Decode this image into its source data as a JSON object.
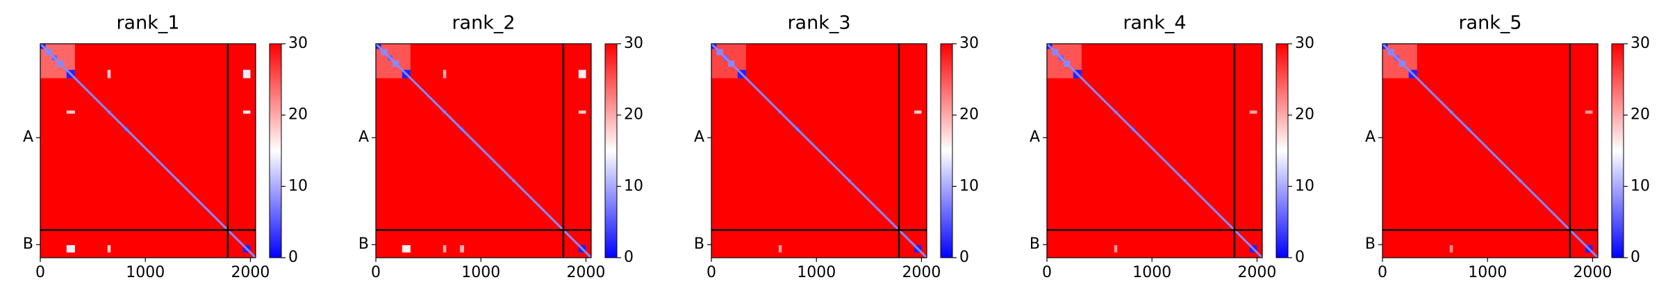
{
  "chart_data": [
    {
      "type": "heatmap",
      "title": "rank_1",
      "colormap": "bwr",
      "xlim": [
        0,
        2050
      ],
      "ylim": [
        2050,
        0
      ],
      "xticks": [
        0,
        1000,
        2000
      ],
      "yticks": [
        {
          "value": 900,
          "label": "A"
        },
        {
          "value": 1925,
          "label": "B"
        }
      ],
      "clim": [
        0,
        30
      ],
      "cticks": [
        0,
        10,
        20,
        30
      ],
      "background": 30,
      "diagonal": 8,
      "boundary": 1785,
      "patches": [
        {
          "x": [
            0,
            330
          ],
          "y": [
            0,
            330
          ],
          "value": 24
        },
        {
          "x": [
            0,
            50
          ],
          "y": [
            0,
            50
          ],
          "value": 2
        },
        {
          "x": [
            50,
            110
          ],
          "y": [
            50,
            110
          ],
          "value": 8
        },
        {
          "x": [
            110,
            160
          ],
          "y": [
            110,
            160
          ],
          "value": 6
        },
        {
          "x": [
            160,
            220
          ],
          "y": [
            160,
            220
          ],
          "value": 8
        },
        {
          "x": [
            250,
            330
          ],
          "y": [
            250,
            330
          ],
          "value": 2
        },
        {
          "x": [
            640,
            670
          ],
          "y": [
            640,
            670
          ],
          "value": 6
        },
        {
          "x": [
            800,
            840
          ],
          "y": [
            800,
            840
          ],
          "value": 4
        },
        {
          "x": [
            1300,
            1325
          ],
          "y": [
            1300,
            1325
          ],
          "value": 8
        },
        {
          "x": [
            1930,
            2000
          ],
          "y": [
            1930,
            2000
          ],
          "value": 2
        },
        {
          "x": [
            250,
            330
          ],
          "y": [
            1930,
            2000
          ],
          "value": 14
        },
        {
          "x": [
            640,
            670
          ],
          "y": [
            1930,
            2000
          ],
          "value": 18
        },
        {
          "x": [
            1930,
            2000
          ],
          "y": [
            250,
            330
          ],
          "value": 14
        },
        {
          "x": [
            640,
            670
          ],
          "y": [
            250,
            330
          ],
          "value": 18
        },
        {
          "x": [
            250,
            330
          ],
          "y": [
            640,
            670
          ],
          "value": 18
        },
        {
          "x": [
            1930,
            2000
          ],
          "y": [
            640,
            670
          ],
          "value": 16
        }
      ]
    },
    {
      "type": "heatmap",
      "title": "rank_2",
      "colormap": "bwr",
      "xlim": [
        0,
        2050
      ],
      "ylim": [
        2050,
        0
      ],
      "xticks": [
        0,
        1000,
        2000
      ],
      "yticks": [
        {
          "value": 900,
          "label": "A"
        },
        {
          "value": 1925,
          "label": "B"
        }
      ],
      "clim": [
        0,
        30
      ],
      "cticks": [
        0,
        10,
        20,
        30
      ],
      "background": 30,
      "diagonal": 8,
      "boundary": 1785,
      "patches": [
        {
          "x": [
            0,
            330
          ],
          "y": [
            0,
            330
          ],
          "value": 25
        },
        {
          "x": [
            0,
            50
          ],
          "y": [
            0,
            50
          ],
          "value": 2
        },
        {
          "x": [
            50,
            110
          ],
          "y": [
            50,
            110
          ],
          "value": 8
        },
        {
          "x": [
            110,
            160
          ],
          "y": [
            110,
            160
          ],
          "value": 6
        },
        {
          "x": [
            160,
            220
          ],
          "y": [
            160,
            220
          ],
          "value": 8
        },
        {
          "x": [
            250,
            330
          ],
          "y": [
            250,
            330
          ],
          "value": 2
        },
        {
          "x": [
            640,
            670
          ],
          "y": [
            640,
            670
          ],
          "value": 6
        },
        {
          "x": [
            800,
            840
          ],
          "y": [
            800,
            840
          ],
          "value": 4
        },
        {
          "x": [
            1300,
            1325
          ],
          "y": [
            1300,
            1325
          ],
          "value": 8
        },
        {
          "x": [
            1930,
            2000
          ],
          "y": [
            1930,
            2000
          ],
          "value": 2
        },
        {
          "x": [
            250,
            330
          ],
          "y": [
            1930,
            2000
          ],
          "value": 16
        },
        {
          "x": [
            640,
            670
          ],
          "y": [
            1930,
            2000
          ],
          "value": 20
        },
        {
          "x": [
            800,
            840
          ],
          "y": [
            1930,
            2000
          ],
          "value": 20
        },
        {
          "x": [
            1930,
            2000
          ],
          "y": [
            250,
            330
          ],
          "value": 16
        },
        {
          "x": [
            640,
            670
          ],
          "y": [
            250,
            330
          ],
          "value": 20
        },
        {
          "x": [
            1930,
            2000
          ],
          "y": [
            640,
            670
          ],
          "value": 18
        }
      ]
    },
    {
      "type": "heatmap",
      "title": "rank_3",
      "colormap": "bwr",
      "xlim": [
        0,
        2050
      ],
      "ylim": [
        2050,
        0
      ],
      "xticks": [
        0,
        1000,
        2000
      ],
      "yticks": [
        {
          "value": 900,
          "label": "A"
        },
        {
          "value": 1925,
          "label": "B"
        }
      ],
      "clim": [
        0,
        30
      ],
      "cticks": [
        0,
        10,
        20,
        30
      ],
      "background": 30,
      "diagonal": 8,
      "boundary": 1785,
      "patches": [
        {
          "x": [
            0,
            330
          ],
          "y": [
            0,
            330
          ],
          "value": 26
        },
        {
          "x": [
            0,
            50
          ],
          "y": [
            0,
            50
          ],
          "value": 2
        },
        {
          "x": [
            50,
            110
          ],
          "y": [
            50,
            110
          ],
          "value": 8
        },
        {
          "x": [
            110,
            160
          ],
          "y": [
            110,
            160
          ],
          "value": 6
        },
        {
          "x": [
            160,
            220
          ],
          "y": [
            160,
            220
          ],
          "value": 8
        },
        {
          "x": [
            250,
            330
          ],
          "y": [
            250,
            330
          ],
          "value": 2
        },
        {
          "x": [
            640,
            670
          ],
          "y": [
            640,
            670
          ],
          "value": 6
        },
        {
          "x": [
            800,
            840
          ],
          "y": [
            800,
            840
          ],
          "value": 4
        },
        {
          "x": [
            1300,
            1325
          ],
          "y": [
            1300,
            1325
          ],
          "value": 8
        },
        {
          "x": [
            1930,
            2000
          ],
          "y": [
            1930,
            2000
          ],
          "value": 2
        },
        {
          "x": [
            640,
            670
          ],
          "y": [
            1930,
            2000
          ],
          "value": 21
        },
        {
          "x": [
            1930,
            2000
          ],
          "y": [
            640,
            670
          ],
          "value": 18
        }
      ]
    },
    {
      "type": "heatmap",
      "title": "rank_4",
      "colormap": "bwr",
      "xlim": [
        0,
        2050
      ],
      "ylim": [
        2050,
        0
      ],
      "xticks": [
        0,
        1000,
        2000
      ],
      "yticks": [
        {
          "value": 900,
          "label": "A"
        },
        {
          "value": 1925,
          "label": "B"
        }
      ],
      "clim": [
        0,
        30
      ],
      "cticks": [
        0,
        10,
        20,
        30
      ],
      "background": 30,
      "diagonal": 8,
      "boundary": 1785,
      "patches": [
        {
          "x": [
            0,
            330
          ],
          "y": [
            0,
            330
          ],
          "value": 25
        },
        {
          "x": [
            0,
            50
          ],
          "y": [
            0,
            50
          ],
          "value": 2
        },
        {
          "x": [
            50,
            110
          ],
          "y": [
            50,
            110
          ],
          "value": 8
        },
        {
          "x": [
            110,
            160
          ],
          "y": [
            110,
            160
          ],
          "value": 6
        },
        {
          "x": [
            160,
            220
          ],
          "y": [
            160,
            220
          ],
          "value": 8
        },
        {
          "x": [
            250,
            330
          ],
          "y": [
            250,
            330
          ],
          "value": 2
        },
        {
          "x": [
            640,
            670
          ],
          "y": [
            640,
            670
          ],
          "value": 6
        },
        {
          "x": [
            800,
            840
          ],
          "y": [
            800,
            840
          ],
          "value": 4
        },
        {
          "x": [
            1300,
            1325
          ],
          "y": [
            1300,
            1325
          ],
          "value": 8
        },
        {
          "x": [
            1930,
            2000
          ],
          "y": [
            1930,
            2000
          ],
          "value": 2
        },
        {
          "x": [
            640,
            670
          ],
          "y": [
            1930,
            2000
          ],
          "value": 21
        },
        {
          "x": [
            1930,
            2000
          ],
          "y": [
            640,
            670
          ],
          "value": 20
        }
      ]
    },
    {
      "type": "heatmap",
      "title": "rank_5",
      "colormap": "bwr",
      "xlim": [
        0,
        2050
      ],
      "ylim": [
        2050,
        0
      ],
      "xticks": [
        0,
        1000,
        2000
      ],
      "yticks": [
        {
          "value": 900,
          "label": "A"
        },
        {
          "value": 1925,
          "label": "B"
        }
      ],
      "clim": [
        0,
        30
      ],
      "cticks": [
        0,
        10,
        20,
        30
      ],
      "background": 30,
      "diagonal": 8,
      "boundary": 1785,
      "patches": [
        {
          "x": [
            0,
            330
          ],
          "y": [
            0,
            330
          ],
          "value": 25
        },
        {
          "x": [
            0,
            50
          ],
          "y": [
            0,
            50
          ],
          "value": 2
        },
        {
          "x": [
            50,
            110
          ],
          "y": [
            50,
            110
          ],
          "value": 8
        },
        {
          "x": [
            110,
            160
          ],
          "y": [
            110,
            160
          ],
          "value": 6
        },
        {
          "x": [
            160,
            220
          ],
          "y": [
            160,
            220
          ],
          "value": 8
        },
        {
          "x": [
            250,
            330
          ],
          "y": [
            250,
            330
          ],
          "value": 2
        },
        {
          "x": [
            640,
            670
          ],
          "y": [
            640,
            670
          ],
          "value": 6
        },
        {
          "x": [
            800,
            840
          ],
          "y": [
            800,
            840
          ],
          "value": 4
        },
        {
          "x": [
            1300,
            1325
          ],
          "y": [
            1300,
            1325
          ],
          "value": 8
        },
        {
          "x": [
            1930,
            2000
          ],
          "y": [
            1930,
            2000
          ],
          "value": 2
        },
        {
          "x": [
            640,
            670
          ],
          "y": [
            1930,
            2000
          ],
          "value": 22
        },
        {
          "x": [
            1930,
            2000
          ],
          "y": [
            640,
            670
          ],
          "value": 21
        }
      ]
    }
  ]
}
